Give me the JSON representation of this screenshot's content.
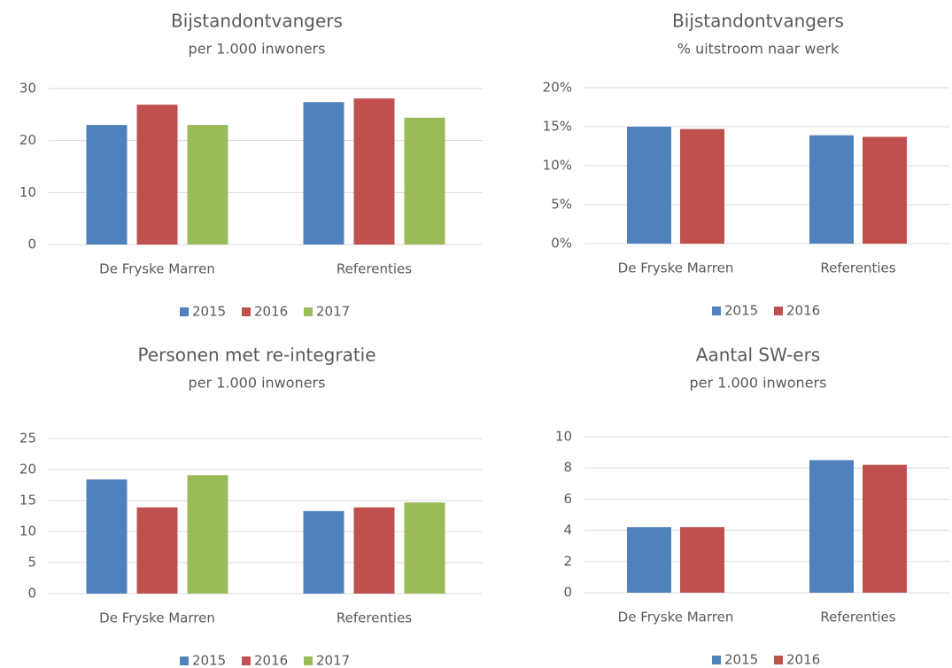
{
  "chart_data": [
    {
      "type": "bar",
      "title": "Bijstandontvangers",
      "subtitle": "per 1.000 inwoners",
      "categories": [
        "De Fryske Marren",
        "Referenties"
      ],
      "series": [
        {
          "name": "2015",
          "color": "#4f81bd",
          "values": [
            23,
            27.4
          ]
        },
        {
          "name": "2016",
          "color": "#c0504d",
          "values": [
            26.9,
            28.1
          ]
        },
        {
          "name": "2017",
          "color": "#9bbb59",
          "values": [
            23,
            24.4
          ]
        }
      ],
      "ylim": [
        0,
        30
      ],
      "yticks": [
        0,
        10,
        20,
        30
      ],
      "grid": true,
      "legend": "bottom"
    },
    {
      "type": "bar",
      "title": "Bijstandontvangers",
      "subtitle": "% uitstroom naar werk",
      "categories": [
        "De Fryske Marren",
        "Referenties"
      ],
      "series": [
        {
          "name": "2015",
          "color": "#4f81bd",
          "values": [
            15,
            13.9
          ]
        },
        {
          "name": "2016",
          "color": "#c0504d",
          "values": [
            14.7,
            13.7
          ]
        }
      ],
      "ylim": [
        0,
        20
      ],
      "yticks": [
        {
          "value": 0,
          "label": "0%"
        },
        {
          "value": 5,
          "label": "5%"
        },
        {
          "value": 10,
          "label": "10%"
        },
        {
          "value": 15,
          "label": "15%"
        },
        {
          "value": 20,
          "label": "20%"
        }
      ],
      "grid": true,
      "legend": "bottom"
    },
    {
      "type": "bar",
      "title": "Personen met re-integratie",
      "subtitle": "per 1.000 inwoners",
      "categories": [
        "De Fryske Marren",
        "Referenties"
      ],
      "series": [
        {
          "name": "2015",
          "color": "#4f81bd",
          "values": [
            18.4,
            13.3
          ]
        },
        {
          "name": "2016",
          "color": "#c0504d",
          "values": [
            13.9,
            13.9
          ]
        },
        {
          "name": "2017",
          "color": "#9bbb59",
          "values": [
            19.1,
            14.7
          ]
        }
      ],
      "ylim": [
        0,
        25
      ],
      "yticks": [
        0,
        5,
        10,
        15,
        20,
        25
      ],
      "grid": true,
      "legend": "bottom"
    },
    {
      "type": "bar",
      "title": "Aantal SW-ers",
      "subtitle": "per 1.000 inwoners",
      "categories": [
        "De Fryske Marren",
        "Referenties"
      ],
      "series": [
        {
          "name": "2015",
          "color": "#4f81bd",
          "values": [
            4.2,
            8.5
          ]
        },
        {
          "name": "2016",
          "color": "#c0504d",
          "values": [
            4.2,
            8.2
          ]
        }
      ],
      "ylim": [
        0,
        10
      ],
      "yticks": [
        0,
        2,
        4,
        6,
        8,
        10
      ],
      "grid": true,
      "legend": "bottom"
    }
  ]
}
